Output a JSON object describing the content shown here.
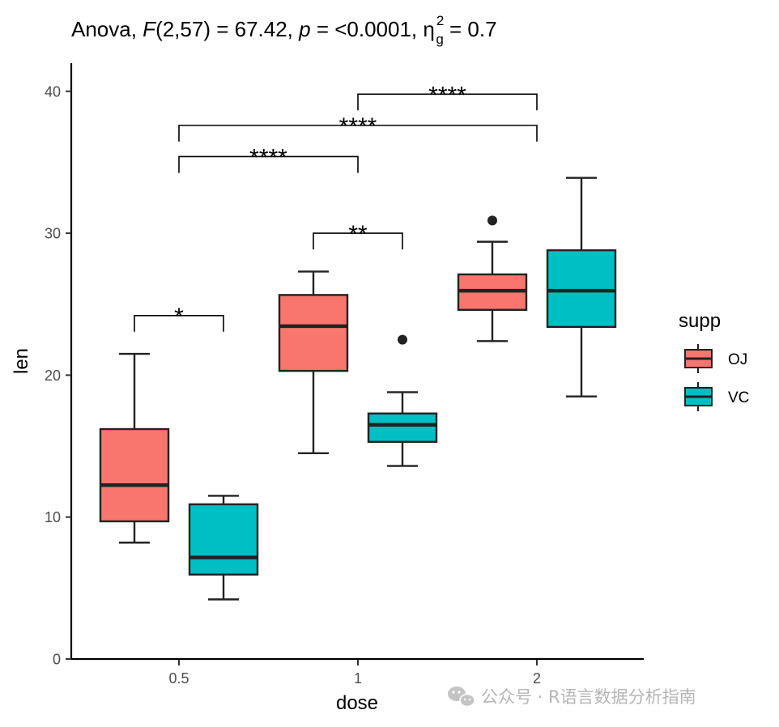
{
  "chart_data": {
    "type": "box",
    "title": {
      "prefix": "Anova, ",
      "F_symbol": "F",
      "F_args": "(2,57) = 67.42, ",
      "p_symbol": "p",
      "p_text": " = <0.0001, ",
      "eta_symbol": "η",
      "eta_sub": "g",
      "eta_sup": "2",
      "eta_text": " = 0.7"
    },
    "xlabel": "dose",
    "ylabel": "len",
    "categories": [
      "0.5",
      "1",
      "2"
    ],
    "ylim": [
      0,
      42
    ],
    "yticks": [
      0,
      10,
      20,
      30,
      40
    ],
    "yticklabels": [
      "0",
      "10",
      "20",
      "30",
      "40"
    ],
    "legend": {
      "title": "supp",
      "position": "right"
    },
    "series": [
      {
        "name": "OJ",
        "color": "#F8766D",
        "boxes": [
          {
            "category": "0.5",
            "low": 8.2,
            "q1": 9.7,
            "median": 12.25,
            "q3": 16.2,
            "high": 21.5,
            "outliers": []
          },
          {
            "category": "1",
            "low": 14.5,
            "q1": 20.3,
            "median": 23.45,
            "q3": 25.65,
            "high": 27.3,
            "outliers": []
          },
          {
            "category": "2",
            "low": 22.4,
            "q1": 24.6,
            "median": 25.95,
            "q3": 27.1,
            "high": 29.4,
            "outliers": [
              30.9
            ]
          }
        ]
      },
      {
        "name": "VC",
        "color": "#00BFC4",
        "boxes": [
          {
            "category": "0.5",
            "low": 4.2,
            "q1": 5.95,
            "median": 7.15,
            "q3": 10.9,
            "high": 11.5,
            "outliers": []
          },
          {
            "category": "1",
            "low": 13.6,
            "q1": 15.3,
            "median": 16.5,
            "q3": 17.3,
            "high": 18.8,
            "outliers": [
              22.5
            ]
          },
          {
            "category": "2",
            "low": 18.5,
            "q1": 23.4,
            "median": 25.95,
            "q3": 28.8,
            "high": 33.9,
            "outliers": []
          }
        ]
      }
    ],
    "comparisons": [
      {
        "from": {
          "category": "0.5",
          "series": "OJ"
        },
        "to": {
          "category": "0.5",
          "series": "VC"
        },
        "y": 24.2,
        "label": "*"
      },
      {
        "from": {
          "category": "1",
          "series": "OJ"
        },
        "to": {
          "category": "1",
          "series": "VC"
        },
        "y": 30.0,
        "label": "**"
      },
      {
        "from": {
          "category": "0.5"
        },
        "to": {
          "category": "1"
        },
        "y": 35.4,
        "label": "****"
      },
      {
        "from": {
          "category": "0.5"
        },
        "to": {
          "category": "2"
        },
        "y": 37.6,
        "label": "****"
      },
      {
        "from": {
          "category": "1"
        },
        "to": {
          "category": "2"
        },
        "y": 39.8,
        "label": "****"
      }
    ]
  },
  "watermark": {
    "icon": "wechat-icon",
    "text": "公众号 · R语言数据分析指南"
  }
}
